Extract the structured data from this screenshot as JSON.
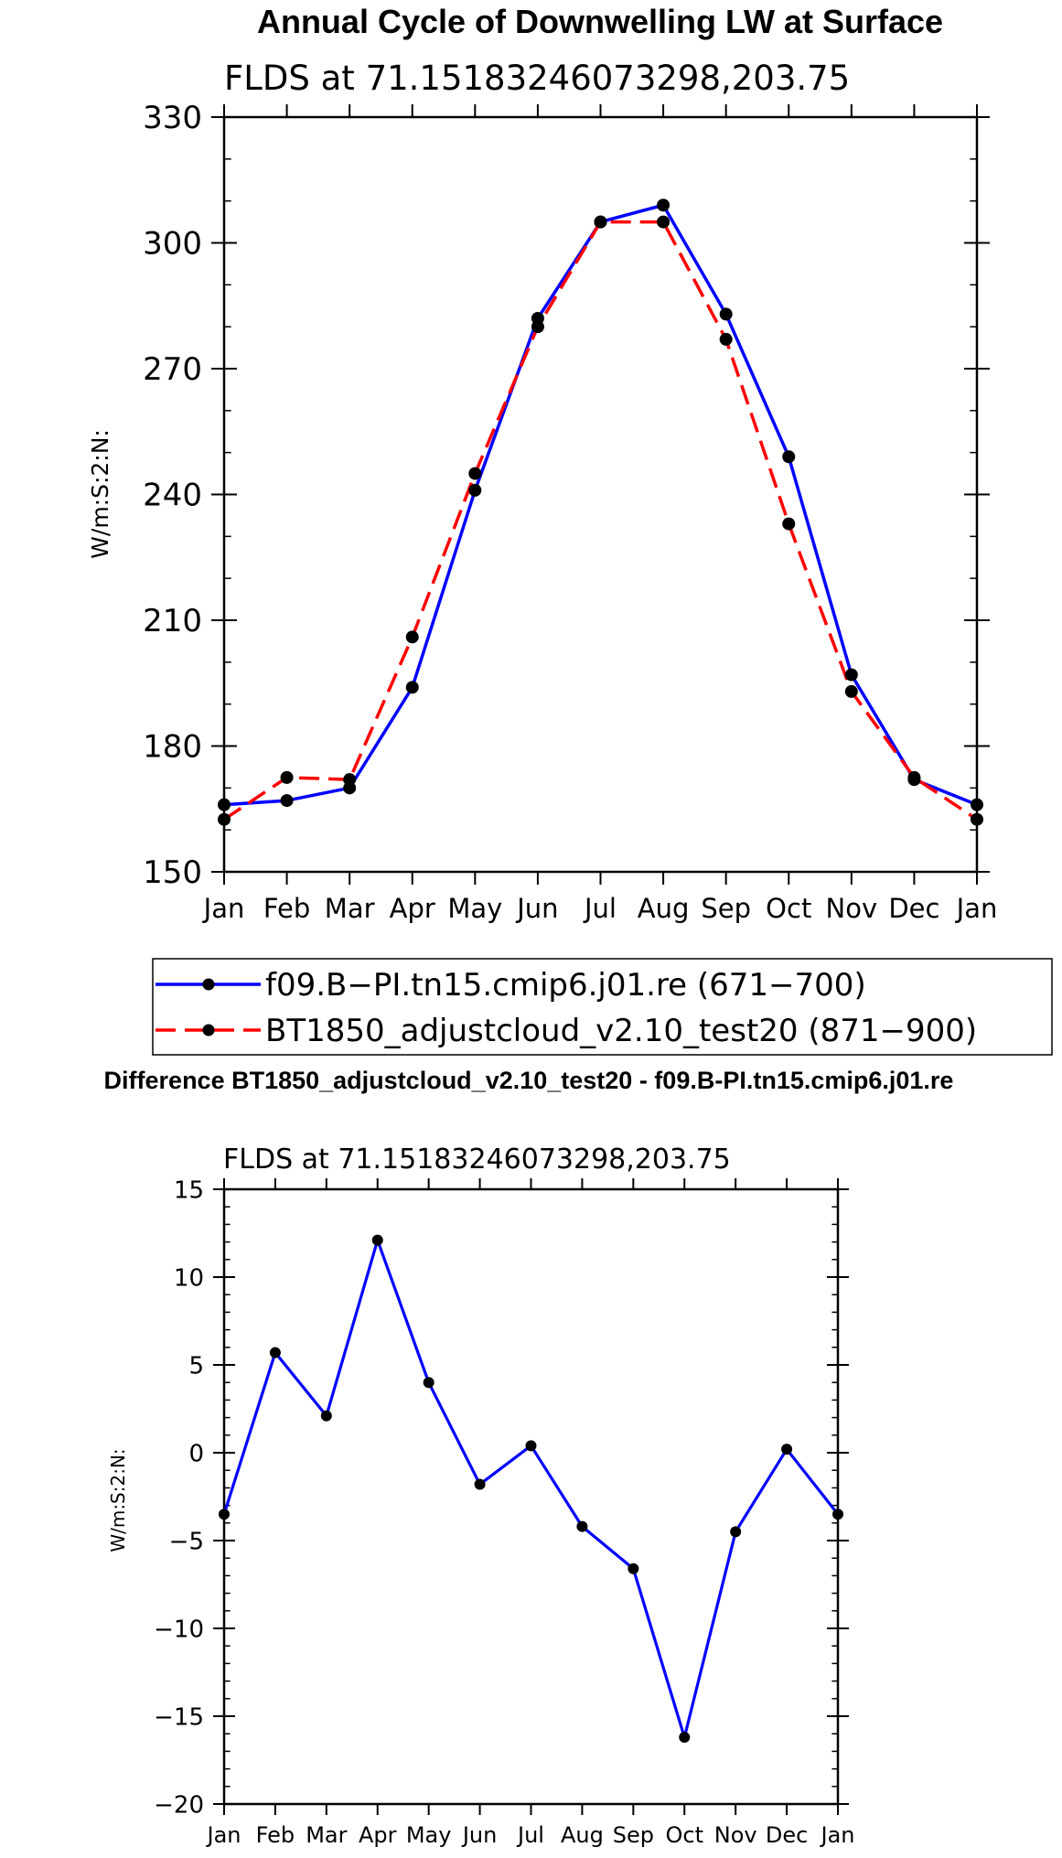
{
  "chart_data": [
    {
      "type": "line",
      "title": "Annual Cycle of Downwelling LW at Surface",
      "subtitle": "FLDS at 71.15183246073298,203.75",
      "xlabel": "",
      "ylabel": "W/m:S:2:N:",
      "categories": [
        "Jan",
        "Feb",
        "Mar",
        "Apr",
        "May",
        "Jun",
        "Jul",
        "Aug",
        "Sep",
        "Oct",
        "Nov",
        "Dec",
        "Jan"
      ],
      "ylim": [
        150,
        330
      ],
      "yticks": [
        150,
        180,
        210,
        240,
        270,
        300,
        330
      ],
      "ytick_labels": [
        "150",
        "180",
        "210",
        "240",
        "270",
        "300",
        "330"
      ],
      "legend_position": "below",
      "series": [
        {
          "name": "f09.B-PI.tn15.cmip6.j01.re (671-700)",
          "legend_label": "f09.B−PI.tn15.cmip6.j01.re (671−700)",
          "color": "#0000ff",
          "dash": "solid",
          "values": [
            166,
            167,
            170,
            194,
            241,
            282,
            305,
            309,
            283,
            249,
            197,
            172,
            166
          ]
        },
        {
          "name": "BT1850_adjustcloud_v2.10_test20 (871-900)",
          "legend_label": "BT1850_adjustcloud_v2.10_test20 (871−900)",
          "color": "#ff0000",
          "dash": "dashed",
          "values": [
            162.5,
            172.5,
            172,
            206,
            245,
            280,
            305,
            305,
            277,
            233,
            193,
            172.5,
            162.5
          ]
        }
      ]
    },
    {
      "type": "line",
      "title": "Difference BT1850_adjustcloud_v2.10_test20 - f09.B-PI.tn15.cmip6.j01.re",
      "subtitle": "FLDS at 71.15183246073298,203.75",
      "xlabel": "",
      "ylabel": "W/m:S:2:N:",
      "categories": [
        "Jan",
        "Feb",
        "Mar",
        "Apr",
        "May",
        "Jun",
        "Jul",
        "Aug",
        "Sep",
        "Oct",
        "Nov",
        "Dec",
        "Jan"
      ],
      "ylim": [
        -20,
        15
      ],
      "yticks": [
        -20,
        -15,
        -10,
        -5,
        0,
        5,
        10,
        15
      ],
      "ytick_labels": [
        "−20",
        "−15",
        "−10",
        "−5",
        "0",
        "5",
        "10",
        "15"
      ],
      "series": [
        {
          "name": "difference",
          "color": "#0000ff",
          "dash": "solid",
          "values": [
            -3.5,
            5.7,
            2.1,
            12.1,
            4.0,
            -1.8,
            0.4,
            -4.2,
            -6.6,
            -16.2,
            -4.5,
            0.2,
            -3.5
          ]
        }
      ]
    }
  ]
}
